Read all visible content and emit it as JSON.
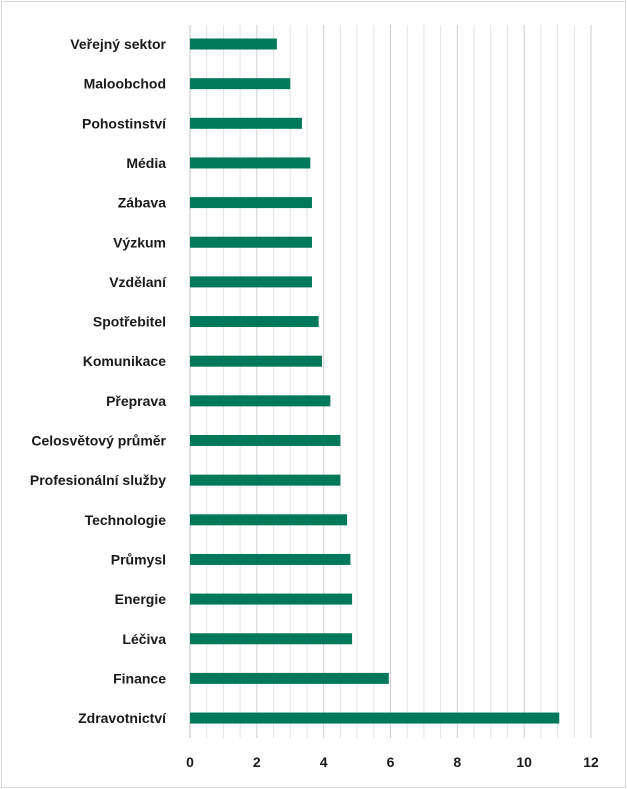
{
  "chart_data": {
    "type": "bar",
    "orientation": "horizontal",
    "title": "",
    "xlabel": "",
    "ylabel": "",
    "xlim": [
      0,
      12
    ],
    "x_ticks": [
      0,
      2,
      4,
      6,
      8,
      10,
      12
    ],
    "grid": true,
    "bar_color": "#00785a",
    "categories": [
      "Veřejný sektor",
      "Maloobchod",
      "Pohostinství",
      "Média",
      "Zábava",
      "Výzkum",
      "Vzdělaní",
      "Spotřebitel",
      "Komunikace",
      "Přeprava",
      "Celosvětový průměr",
      "Profesionální služby",
      "Technologie",
      "Průmysl",
      "Energie",
      "Léčiva",
      "Finance",
      "Zdravotnictví"
    ],
    "values": [
      2.6,
      3.0,
      3.35,
      3.6,
      3.65,
      3.65,
      3.65,
      3.85,
      3.95,
      4.2,
      4.5,
      4.5,
      4.7,
      4.8,
      4.85,
      4.85,
      5.95,
      11.05
    ]
  }
}
